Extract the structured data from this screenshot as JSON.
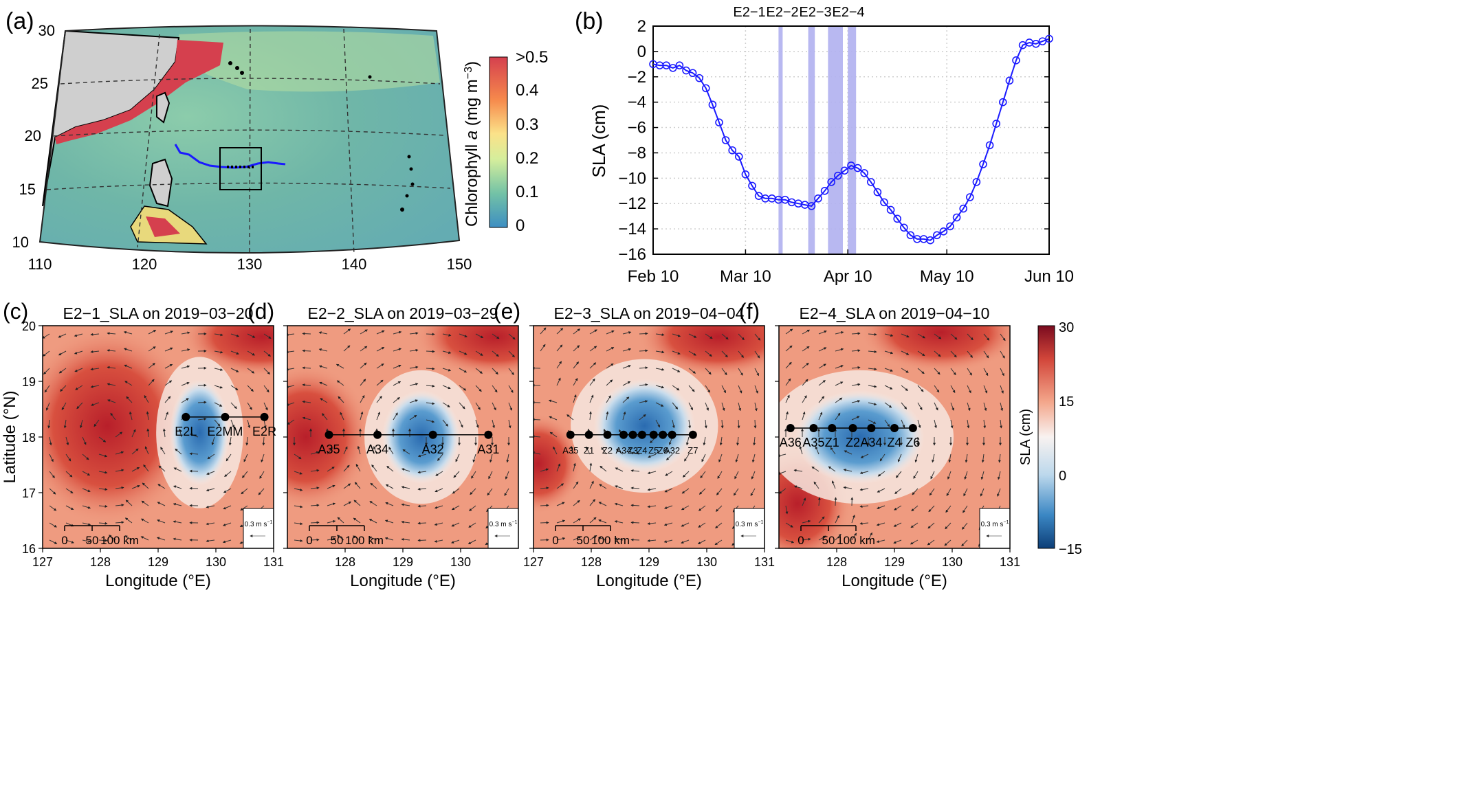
{
  "panel_a": {
    "label": "(a)",
    "lat_ticks": [
      "30",
      "25",
      "20",
      "15",
      "10"
    ],
    "lon_ticks": [
      "110",
      "120",
      "130",
      "140",
      "150"
    ],
    "colorbar": {
      "title_prefix": "Chlorophyll ",
      "title_italic": "a",
      "title_unit": " (mg m",
      "title_sup": "−3",
      "title_close": ")",
      "ticks": [
        ">0.5",
        "0.4",
        "0.3",
        "0.2",
        "0.1",
        "0"
      ]
    }
  },
  "chart_data": {
    "type": "line",
    "panel": "(b)",
    "ylabel": "SLA (cm)",
    "xticks": [
      "Feb 10",
      "Mar 10",
      "Apr 10",
      "May 10",
      "Jun 10"
    ],
    "yticks": [
      "2",
      "0",
      "−2",
      "−4",
      "−6",
      "−8",
      "−10",
      "−12",
      "−14",
      "−16"
    ],
    "ylim": [
      -16,
      2
    ],
    "grid": true,
    "color": "#1a1aff",
    "events": [
      {
        "label": "E2−1",
        "day": 38,
        "width": 1.0
      },
      {
        "label": "E2−2",
        "day": 47,
        "width": 2.0
      },
      {
        "label": "E2−3",
        "day": 53,
        "width": 4.5
      },
      {
        "label": "E2−4",
        "day": 59,
        "width": 2.5
      }
    ],
    "x_days": [
      0,
      2,
      4,
      6,
      8,
      10,
      12,
      14,
      16,
      18,
      20,
      22,
      24,
      26,
      28,
      30,
      32,
      34,
      36,
      38,
      40,
      42,
      44,
      46,
      48,
      50,
      52,
      54,
      56,
      58,
      60,
      62,
      64,
      66,
      68,
      70,
      72,
      74,
      76,
      78,
      80,
      82,
      84,
      86,
      88,
      90,
      92,
      94,
      96,
      98,
      100,
      102,
      104,
      106,
      108,
      110,
      112,
      114,
      116,
      118,
      120
    ],
    "values": [
      -1.0,
      -1.1,
      -1.1,
      -1.3,
      -1.1,
      -1.5,
      -1.7,
      -2.1,
      -2.9,
      -4.2,
      -5.6,
      -7.0,
      -7.8,
      -8.3,
      -9.7,
      -10.6,
      -11.4,
      -11.6,
      -11.6,
      -11.7,
      -11.7,
      -11.9,
      -12.0,
      -12.1,
      -12.2,
      -11.6,
      -11.0,
      -10.3,
      -9.8,
      -9.4,
      -9.0,
      -9.2,
      -9.6,
      -10.3,
      -11.1,
      -11.9,
      -12.5,
      -13.2,
      -13.9,
      -14.5,
      -14.8,
      -14.8,
      -14.9,
      -14.5,
      -14.2,
      -13.8,
      -13.1,
      -12.4,
      -11.5,
      -10.3,
      -8.9,
      -7.4,
      -5.7,
      -4.0,
      -2.3,
      -0.7,
      0.5,
      0.7,
      0.6,
      0.8,
      1.0
    ]
  },
  "sla_panels": {
    "common": {
      "ylabel": "Latitude (°N)",
      "xlabel": "Longitude (°E)",
      "lat_ticks": [
        "20",
        "19",
        "18",
        "17",
        "16"
      ],
      "lon_ticks_c": [
        "127",
        "128",
        "129",
        "130",
        "131"
      ],
      "lon_ticks_d": [
        "128",
        "129",
        "130"
      ],
      "lon_ticks_e": [
        "127",
        "128",
        "129",
        "130",
        "131"
      ],
      "lon_ticks_f": [
        "128",
        "129",
        "130",
        "131"
      ],
      "scale_labels": [
        "0",
        "50",
        "100 km"
      ],
      "vector_label": "0.3 m s",
      "vector_sup": "−1"
    },
    "panels": [
      {
        "label": "(c)",
        "title": "E2−1_SLA on 2019−03−20",
        "stations": [
          "E2L",
          "E2MM",
          "E2R"
        ]
      },
      {
        "label": "(d)",
        "title": "E2−2_SLA on 2019−03−29",
        "stations": [
          "A35",
          "A34",
          "A32",
          "A31"
        ]
      },
      {
        "label": "(e)",
        "title": "E2−3_SLA on 2019−04−04",
        "stations": [
          "A35",
          "Z1",
          "Z2",
          "A34",
          "Z3",
          "Z4",
          "Z5",
          "Z6",
          "A32",
          "Z7"
        ]
      },
      {
        "label": "(f)",
        "title": "E2−4_SLA on 2019−04−10",
        "stations": [
          "A36",
          "A35",
          "Z1",
          "Z2",
          "A34",
          "Z4",
          "Z6"
        ]
      }
    ],
    "colorbar": {
      "title": "SLA (cm)",
      "ticks": [
        "30",
        "15",
        "0",
        "−15"
      ]
    }
  },
  "colors": {
    "land": "#cfcfcf",
    "track": "#1a1aff",
    "event_band": "#b0b0f0"
  }
}
